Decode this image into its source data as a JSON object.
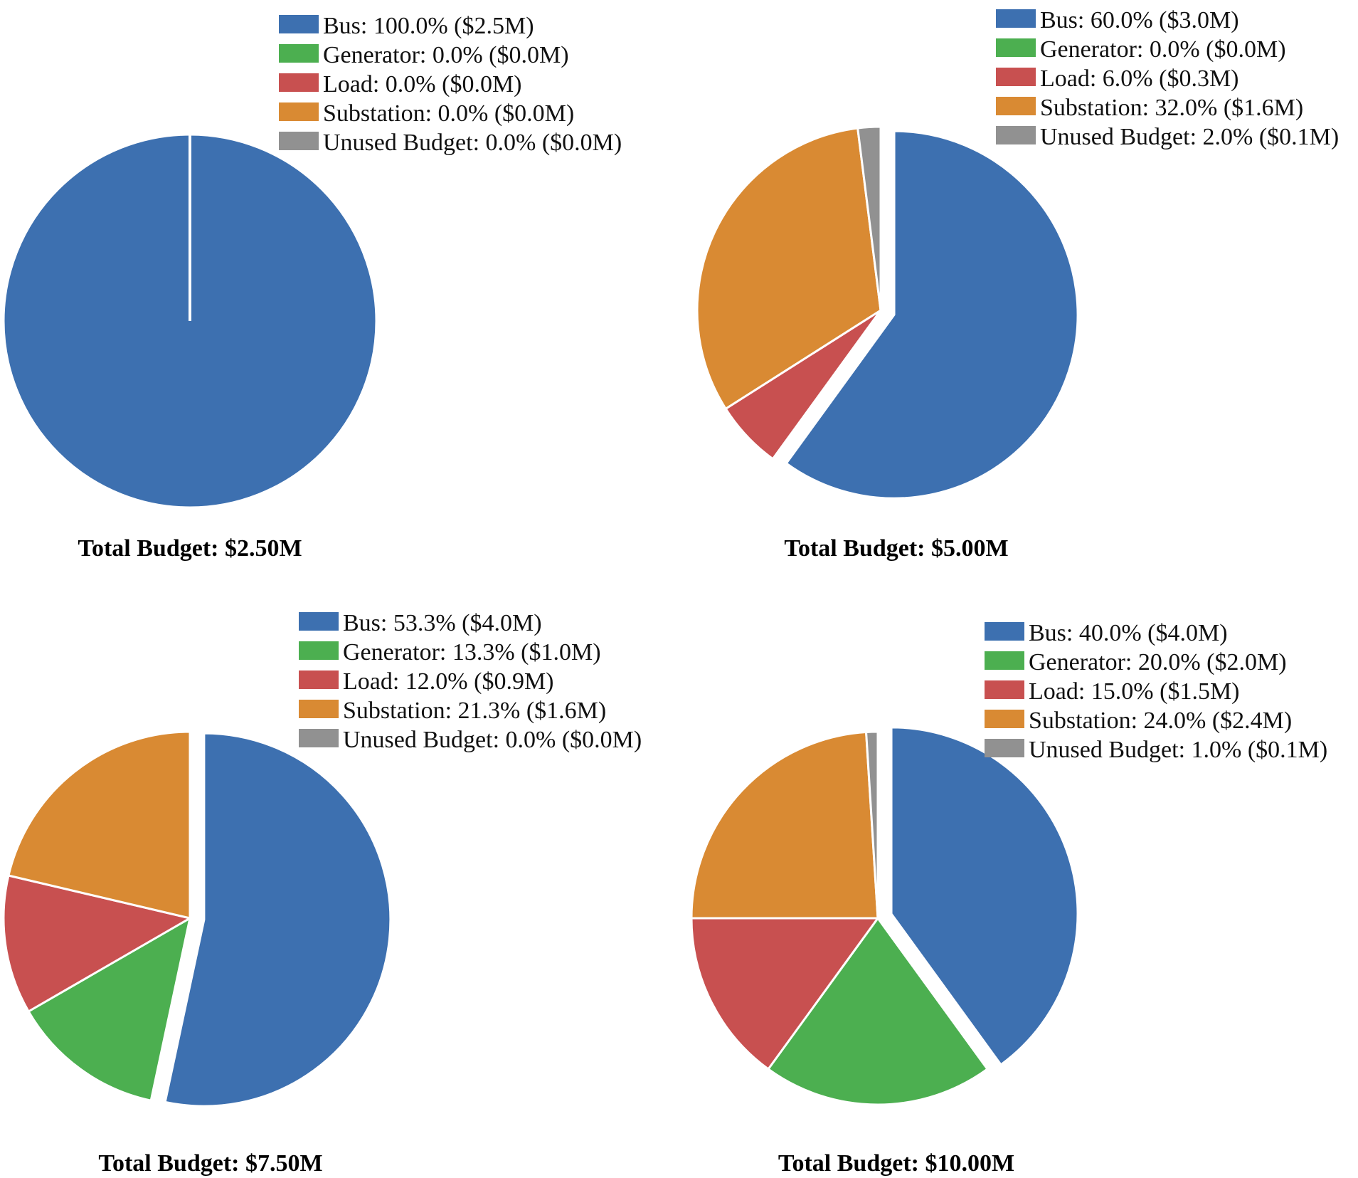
{
  "chart_data": [
    {
      "type": "pie",
      "title": "",
      "total_label": "Total Budget: $2.50M",
      "legend_position": "top-right",
      "categories": [
        "Bus",
        "Generator",
        "Load",
        "Substation",
        "Unused Budget"
      ],
      "values": [
        100.0,
        0.0,
        0.0,
        0.0,
        0.0
      ],
      "amounts": [
        "$2.5M",
        "$0.0M",
        "$0.0M",
        "$0.0M",
        "$0.0M"
      ],
      "legend_labels": [
        "Bus: 100.0% ($2.5M)",
        "Generator: 0.0% ($0.0M)",
        "Load: 0.0% ($0.0M)",
        "Substation: 0.0% ($0.0M)",
        "Unused Budget: 0.0% ($0.0M)"
      ],
      "colors": [
        "#3d70b0",
        "#4caf50",
        "#c85050",
        "#d98a33",
        "#919191"
      ]
    },
    {
      "type": "pie",
      "title": "",
      "total_label": "Total Budget: $5.00M",
      "legend_position": "top-right",
      "categories": [
        "Bus",
        "Generator",
        "Load",
        "Substation",
        "Unused Budget"
      ],
      "values": [
        60.0,
        0.0,
        6.0,
        32.0,
        2.0
      ],
      "amounts": [
        "$3.0M",
        "$0.0M",
        "$0.3M",
        "$1.6M",
        "$0.1M"
      ],
      "legend_labels": [
        "Bus: 60.0% ($3.0M)",
        "Generator: 0.0% ($0.0M)",
        "Load: 6.0% ($0.3M)",
        "Substation: 32.0% ($1.6M)",
        "Unused Budget: 2.0% ($0.1M)"
      ],
      "colors": [
        "#3d70b0",
        "#4caf50",
        "#c85050",
        "#d98a33",
        "#919191"
      ]
    },
    {
      "type": "pie",
      "title": "",
      "total_label": "Total Budget: $7.50M",
      "legend_position": "top-right",
      "categories": [
        "Bus",
        "Generator",
        "Load",
        "Substation",
        "Unused Budget"
      ],
      "values": [
        53.3,
        13.3,
        12.0,
        21.3,
        0.0
      ],
      "amounts": [
        "$4.0M",
        "$1.0M",
        "$0.9M",
        "$1.6M",
        "$0.0M"
      ],
      "legend_labels": [
        "Bus: 53.3% ($4.0M)",
        "Generator: 13.3% ($1.0M)",
        "Load: 12.0% ($0.9M)",
        "Substation: 21.3% ($1.6M)",
        "Unused Budget: 0.0% ($0.0M)"
      ],
      "colors": [
        "#3d70b0",
        "#4caf50",
        "#c85050",
        "#d98a33",
        "#919191"
      ]
    },
    {
      "type": "pie",
      "title": "",
      "total_label": "Total Budget: $10.00M",
      "legend_position": "top-right",
      "categories": [
        "Bus",
        "Generator",
        "Load",
        "Substation",
        "Unused Budget"
      ],
      "values": [
        40.0,
        20.0,
        15.0,
        24.0,
        1.0
      ],
      "amounts": [
        "$4.0M",
        "$2.0M",
        "$1.5M",
        "$2.4M",
        "$0.1M"
      ],
      "legend_labels": [
        "Bus: 40.0% ($4.0M)",
        "Generator: 20.0% ($2.0M)",
        "Load: 15.0% ($1.5M)",
        "Substation: 24.0% ($2.4M)",
        "Unused Budget: 1.0% ($0.1M)"
      ],
      "colors": [
        "#3d70b0",
        "#4caf50",
        "#c85050",
        "#d98a33",
        "#919191"
      ]
    }
  ]
}
